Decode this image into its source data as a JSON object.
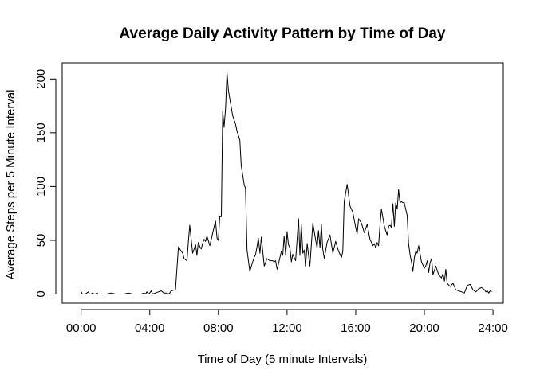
{
  "chart_data": {
    "type": "line",
    "title": "Average Daily Activity Pattern by Time of Day",
    "xlabel": "Time of Day (5 minute Intervals)",
    "ylabel": "Average Steps per 5 Minute Interval",
    "xlim": [
      -1.1,
      24.6
    ],
    "ylim": [
      -8.5,
      215
    ],
    "x_ticks": [
      {
        "value": 0,
        "label": "00:00"
      },
      {
        "value": 4,
        "label": "04:00"
      },
      {
        "value": 8,
        "label": "08:00"
      },
      {
        "value": 12,
        "label": "12:00"
      },
      {
        "value": 16,
        "label": "16:00"
      },
      {
        "value": 20,
        "label": "20:00"
      },
      {
        "value": 24,
        "label": "24:00"
      }
    ],
    "y_ticks": [
      {
        "value": 0,
        "label": "0"
      },
      {
        "value": 50,
        "label": "50"
      },
      {
        "value": 100,
        "label": "100"
      },
      {
        "value": 150,
        "label": "150"
      },
      {
        "value": 200,
        "label": "200"
      }
    ],
    "grid": false,
    "series": [
      {
        "color": "#000000",
        "x": [
          0,
          0.08,
          0.17,
          0.25,
          0.33,
          0.42,
          0.5,
          0.58,
          0.67,
          0.75,
          0.83,
          0.92,
          1.0,
          1.08,
          1.25,
          1.5,
          1.75,
          2.0,
          2.25,
          2.5,
          2.75,
          3.0,
          3.25,
          3.5,
          3.67,
          3.75,
          3.83,
          3.92,
          4.0,
          4.08,
          4.17,
          4.33,
          4.5,
          4.67,
          4.83,
          5.0,
          5.08,
          5.17,
          5.25,
          5.5,
          5.67,
          5.75,
          5.83,
          5.92,
          6.0,
          6.08,
          6.17,
          6.25,
          6.33,
          6.5,
          6.67,
          6.75,
          6.83,
          6.92,
          7.0,
          7.08,
          7.17,
          7.25,
          7.33,
          7.5,
          7.67,
          7.83,
          7.92,
          8.0,
          8.08,
          8.17,
          8.25,
          8.33,
          8.42,
          8.5,
          8.58,
          8.67,
          8.83,
          9.0,
          9.08,
          9.25,
          9.33,
          9.42,
          9.5,
          9.58,
          9.67,
          9.83,
          10.0,
          10.08,
          10.17,
          10.25,
          10.33,
          10.42,
          10.5,
          10.67,
          10.83,
          11.0,
          11.08,
          11.17,
          11.25,
          11.33,
          11.42,
          11.5,
          11.67,
          11.75,
          11.83,
          11.92,
          12.0,
          12.08,
          12.17,
          12.25,
          12.33,
          12.5,
          12.67,
          12.75,
          12.83,
          12.92,
          13.0,
          13.08,
          13.17,
          13.33,
          13.5,
          13.67,
          13.75,
          13.83,
          13.92,
          14.0,
          14.08,
          14.17,
          14.33,
          14.5,
          14.67,
          14.83,
          15.0,
          15.17,
          15.25,
          15.33,
          15.5,
          15.67,
          15.83,
          16.0,
          16.08,
          16.17,
          16.33,
          16.5,
          16.67,
          16.83,
          17.0,
          17.08,
          17.17,
          17.25,
          17.33,
          17.42,
          17.5,
          17.67,
          17.83,
          17.92,
          18.0,
          18.08,
          18.17,
          18.25,
          18.33,
          18.42,
          18.5,
          18.58,
          18.67,
          18.75,
          18.83,
          19.0,
          19.08,
          19.17,
          19.25,
          19.33,
          19.42,
          19.5,
          19.58,
          19.67,
          19.83,
          20.0,
          20.08,
          20.17,
          20.25,
          20.33,
          20.42,
          20.5,
          20.67,
          20.83,
          21.0,
          21.08,
          21.17,
          21.25,
          21.33,
          21.5,
          21.67,
          21.83,
          22.0,
          22.17,
          22.33,
          22.5,
          22.67,
          22.83,
          23.0,
          23.17,
          23.33,
          23.5,
          23.58,
          23.67,
          23.75,
          23.83,
          23.92
        ],
        "y": [
          2,
          0,
          0,
          0,
          1,
          2,
          0,
          0,
          1,
          0,
          0,
          1,
          0,
          0,
          0,
          0,
          1,
          0,
          0,
          0,
          1,
          0,
          0,
          0,
          1,
          0,
          2,
          0,
          1,
          3,
          0,
          1,
          2,
          3,
          1,
          1,
          0,
          1,
          3,
          4,
          44,
          42,
          40,
          38,
          33,
          32,
          31,
          49,
          64,
          38,
          46,
          36,
          48,
          44,
          42,
          47,
          51,
          49,
          54,
          45,
          57,
          68,
          52,
          50,
          72,
          72,
          170,
          155,
          173,
          206,
          190,
          181,
          166,
          158,
          152,
          143,
          120,
          110,
          102,
          98,
          41,
          21,
          30,
          34,
          37,
          44,
          52,
          38,
          53,
          26,
          33,
          31,
          31,
          31,
          30,
          31,
          23,
          28,
          40,
          36,
          54,
          36,
          58,
          46,
          43,
          30,
          37,
          31,
          70,
          36,
          65,
          38,
          41,
          26,
          47,
          26,
          66,
          50,
          43,
          59,
          43,
          65,
          42,
          33,
          48,
          55,
          38,
          49,
          40,
          34,
          40,
          86,
          102,
          82,
          76,
          62,
          56,
          70,
          66,
          57,
          65,
          51,
          45,
          47,
          43,
          48,
          45,
          65,
          79,
          63,
          55,
          63,
          64,
          62,
          84,
          63,
          85,
          79,
          97,
          85,
          86,
          85,
          85,
          73,
          47,
          36,
          30,
          21,
          34,
          40,
          38,
          45,
          30,
          24,
          26,
          31,
          20,
          29,
          33,
          18,
          26,
          18,
          15,
          19,
          12,
          23,
          10,
          7,
          10,
          4,
          3,
          2,
          1,
          8,
          9,
          4,
          2,
          5,
          6,
          4,
          2,
          3,
          1,
          3,
          2
        ]
      }
    ]
  }
}
